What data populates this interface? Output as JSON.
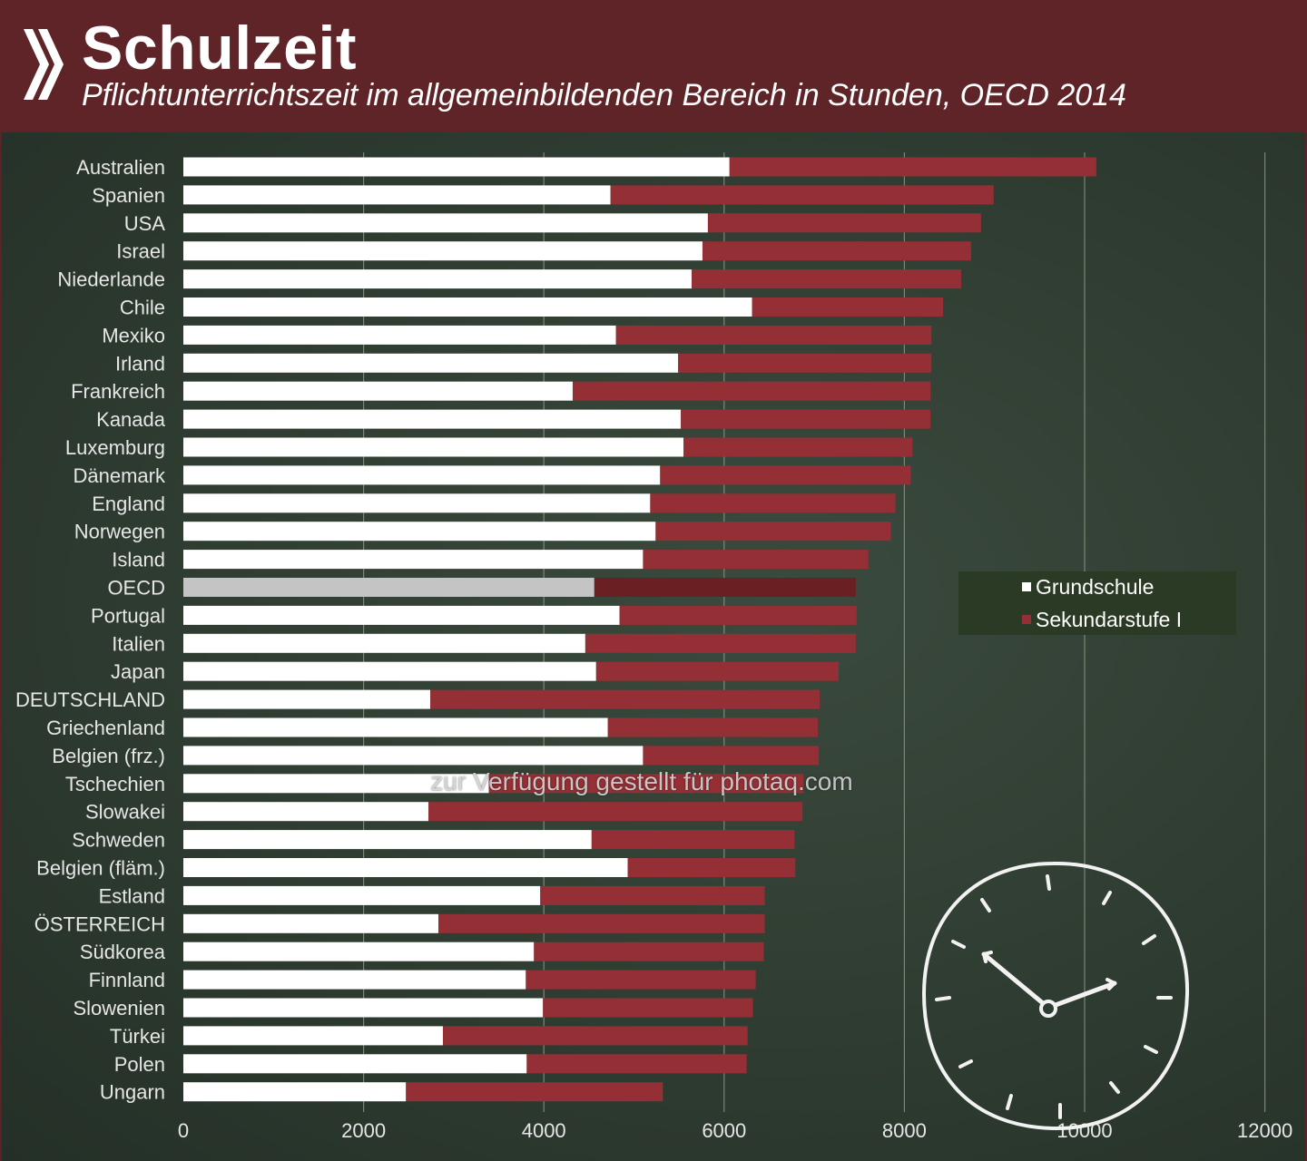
{
  "header": {
    "title": "Schulzeit",
    "subtitle": "Pflichtunterrichtszeit im allgemeinbildenden Bereich in Stunden, OECD 2014"
  },
  "watermark": "zur Verfügung gestellt für photaq.com",
  "legend": {
    "primary_label": "Grundschule",
    "secondary_label": "Sekundarstufe I"
  },
  "colors": {
    "header_bg": "#5e2427",
    "primary": "#ffffff",
    "secondary": "#943035",
    "oecd_primary": "#c4c4c4",
    "oecd_secondary": "#6a1f22",
    "grid": "#8c9a85",
    "text": "#e6e6e6"
  },
  "chart_data": {
    "type": "bar",
    "orientation": "horizontal",
    "stacked": true,
    "categories": [
      "Australien",
      "Spanien",
      "USA",
      "Israel",
      "Niederlande",
      "Chile",
      "Mexiko",
      "Irland",
      "Frankreich",
      "Kanada",
      "Luxemburg",
      "Dänemark",
      "England",
      "Norwegen",
      "Island",
      "OECD",
      "Portugal",
      "Italien",
      "Japan",
      "DEUTSCHLAND",
      "Griechenland",
      "Belgien (frz.)",
      "Tschechien",
      "Slowakei",
      "Schweden",
      "Belgien (fläm.)",
      "Estland",
      "ÖSTERREICH",
      "Südkorea",
      "Finnland",
      "Slowenien",
      "Türkei",
      "Polen",
      "Ungarn"
    ],
    "series": [
      {
        "name": "Grundschule",
        "values": [
          6060,
          4740,
          5820,
          5760,
          5640,
          6310,
          4800,
          5490,
          4320,
          5520,
          5550,
          5290,
          5180,
          5240,
          5100,
          4560,
          4840,
          4460,
          4580,
          2740,
          4710,
          5100,
          3390,
          2720,
          4530,
          4930,
          3960,
          2830,
          3890,
          3800,
          3990,
          2880,
          3810,
          2470
        ]
      },
      {
        "name": "Sekundarstufe I",
        "values": [
          4070,
          4250,
          3030,
          2980,
          2990,
          2120,
          3500,
          2810,
          3970,
          2770,
          2540,
          2780,
          2720,
          2610,
          2500,
          2900,
          2630,
          3000,
          2690,
          4320,
          2330,
          1950,
          3490,
          4150,
          2250,
          1860,
          2490,
          3620,
          2550,
          2550,
          2330,
          3380,
          2440,
          2850
        ]
      }
    ],
    "x_ticks": [
      0,
      2000,
      4000,
      6000,
      8000,
      10000,
      12000
    ],
    "xlim": [
      0,
      12000
    ],
    "grid": true,
    "legend_position": "right"
  }
}
